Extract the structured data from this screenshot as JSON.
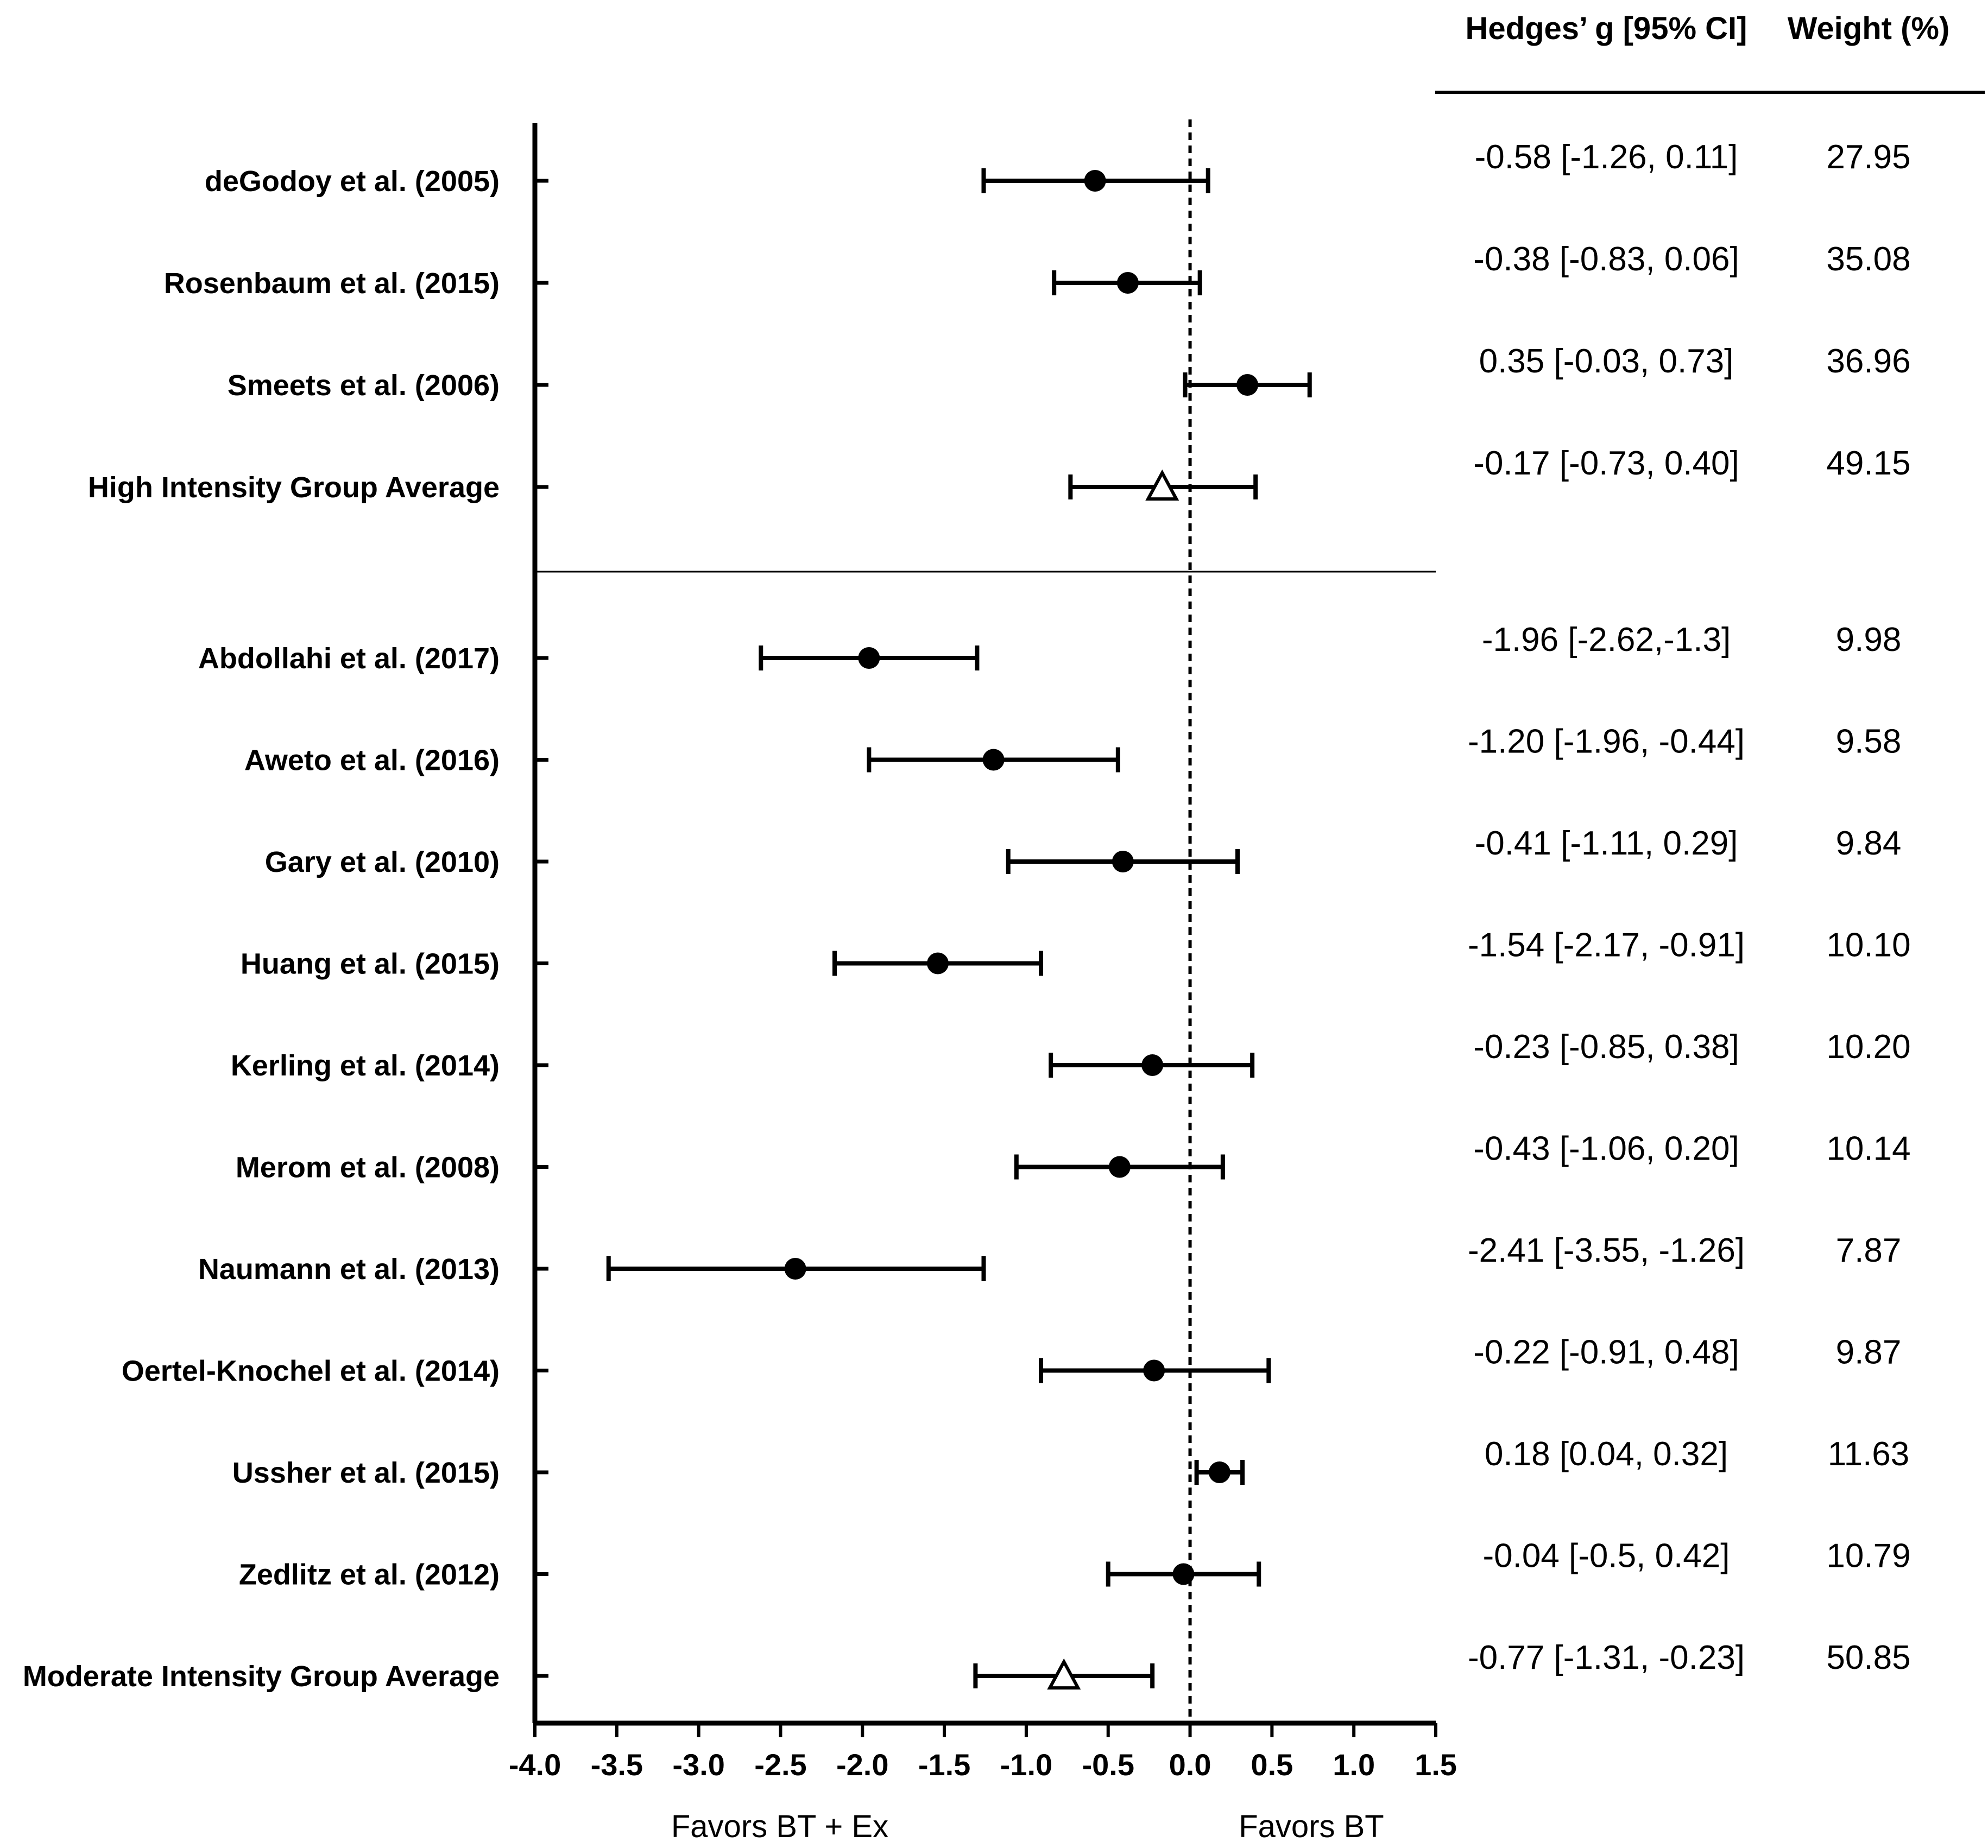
{
  "chart_data": {
    "type": "forest",
    "xlim": [
      -4.0,
      1.5
    ],
    "x_ticks": [
      "-4.0",
      "-3.5",
      "-3.0",
      "-2.5",
      "-2.0",
      "-1.5",
      "-1.0",
      "-0.5",
      "0.0",
      "0.5",
      "1.0",
      "1.5"
    ],
    "x_tick_values": [
      -4.0,
      -3.5,
      -3.0,
      -2.5,
      -2.0,
      -1.5,
      -1.0,
      -0.5,
      0.0,
      0.5,
      1.0,
      1.5
    ],
    "reference_line": 0.0,
    "favors_left": "Favors BT + Ex",
    "favors_right": "Favors BT",
    "columns": {
      "effect": "Hedges’ g [95% CI]",
      "weight": "Weight (%)"
    },
    "rows": [
      {
        "label": "deGodoy et al. (2005)",
        "g": -0.58,
        "lo": -1.26,
        "hi": 0.11,
        "ci_text": "-0.58 [-1.26, 0.11]",
        "weight": "27.95",
        "marker": "circle",
        "group": "high"
      },
      {
        "label": "Rosenbaum et al. (2015)",
        "g": -0.38,
        "lo": -0.83,
        "hi": 0.06,
        "ci_text": "-0.38 [-0.83, 0.06]",
        "weight": "35.08",
        "marker": "circle",
        "group": "high"
      },
      {
        "label": "Smeets et al. (2006)",
        "g": 0.35,
        "lo": -0.03,
        "hi": 0.73,
        "ci_text": "0.35 [-0.03, 0.73]",
        "weight": "36.96",
        "marker": "circle",
        "group": "high"
      },
      {
        "label": "High Intensity Group Average",
        "g": -0.17,
        "lo": -0.73,
        "hi": 0.4,
        "ci_text": "-0.17 [-0.73, 0.40]",
        "weight": "49.15",
        "marker": "triangle",
        "group": "high"
      },
      {
        "label": "Abdollahi et al. (2017)",
        "g": -1.96,
        "lo": -2.62,
        "hi": -1.3,
        "ci_text": "-1.96 [-2.62,-1.3]",
        "weight": "9.98",
        "marker": "circle",
        "group": "moderate"
      },
      {
        "label": "Aweto et al. (2016)",
        "g": -1.2,
        "lo": -1.96,
        "hi": -0.44,
        "ci_text": "-1.20 [-1.96, -0.44]",
        "weight": "9.58",
        "marker": "circle",
        "group": "moderate"
      },
      {
        "label": "Gary et al. (2010)",
        "g": -0.41,
        "lo": -1.11,
        "hi": 0.29,
        "ci_text": "-0.41 [-1.11, 0.29]",
        "weight": "9.84",
        "marker": "circle",
        "group": "moderate"
      },
      {
        "label": "Huang et al. (2015)",
        "g": -1.54,
        "lo": -2.17,
        "hi": -0.91,
        "ci_text": "-1.54 [-2.17, -0.91]",
        "weight": "10.10",
        "marker": "circle",
        "group": "moderate"
      },
      {
        "label": "Kerling et al. (2014)",
        "g": -0.23,
        "lo": -0.85,
        "hi": 0.38,
        "ci_text": "-0.23 [-0.85, 0.38]",
        "weight": "10.20",
        "marker": "circle",
        "group": "moderate"
      },
      {
        "label": "Merom et al. (2008)",
        "g": -0.43,
        "lo": -1.06,
        "hi": 0.2,
        "ci_text": "-0.43 [-1.06, 0.20]",
        "weight": "10.14",
        "marker": "circle",
        "group": "moderate"
      },
      {
        "label": "Naumann et al. (2013)",
        "g": -2.41,
        "lo": -3.55,
        "hi": -1.26,
        "ci_text": "-2.41 [-3.55, -1.26]",
        "weight": "7.87",
        "marker": "circle",
        "group": "moderate"
      },
      {
        "label": "Oertel-Knochel et al. (2014)",
        "g": -0.22,
        "lo": -0.91,
        "hi": 0.48,
        "ci_text": "-0.22 [-0.91, 0.48]",
        "weight": "9.87",
        "marker": "circle",
        "group": "moderate"
      },
      {
        "label": "Ussher et al. (2015)",
        "g": 0.18,
        "lo": 0.04,
        "hi": 0.32,
        "ci_text": "0.18 [0.04, 0.32]",
        "weight": "11.63",
        "marker": "circle",
        "group": "moderate"
      },
      {
        "label": "Zedlitz et al. (2012)",
        "g": -0.04,
        "lo": -0.5,
        "hi": 0.42,
        "ci_text": "-0.04 [-0.5, 0.42]",
        "weight": "10.79",
        "marker": "circle",
        "group": "moderate"
      },
      {
        "label": "Moderate Intensity Group Average",
        "g": -0.77,
        "lo": -1.31,
        "hi": -0.23,
        "ci_text": "-0.77 [-1.31, -0.23]",
        "weight": "50.85",
        "marker": "triangle",
        "group": "moderate"
      }
    ]
  }
}
